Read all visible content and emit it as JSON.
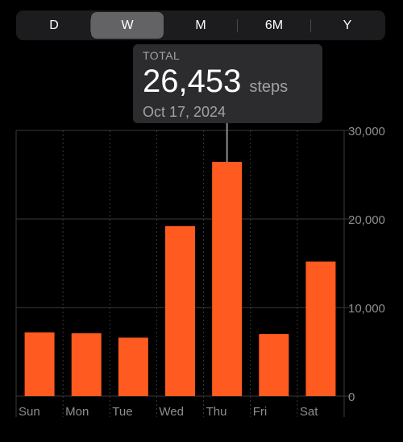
{
  "segments": [
    {
      "label": "D",
      "active": false
    },
    {
      "label": "W",
      "active": true
    },
    {
      "label": "M",
      "active": false
    },
    {
      "label": "6M",
      "active": false
    },
    {
      "label": "Y",
      "active": false
    }
  ],
  "tooltip": {
    "label": "TOTAL",
    "value": "26,453",
    "unit": "steps",
    "date": "Oct 17, 2024"
  },
  "colors": {
    "bar": "#ff5a1f",
    "grid": "#3a3a3c",
    "text": "#8e8e93",
    "selector": "#8e8e93"
  },
  "chart_data": {
    "type": "bar",
    "categories": [
      "Sun",
      "Mon",
      "Tue",
      "Wed",
      "Thu",
      "Fri",
      "Sat"
    ],
    "values": [
      7200,
      7100,
      6600,
      19200,
      26453,
      7000,
      15200
    ],
    "ylim": [
      0,
      30000
    ],
    "yticks": [
      0,
      10000,
      20000,
      30000
    ],
    "ytick_labels": [
      "0",
      "10,000",
      "20,000",
      "30,000"
    ],
    "selected_index": 4,
    "grid": true,
    "title": "",
    "xlabel": "",
    "ylabel": ""
  }
}
